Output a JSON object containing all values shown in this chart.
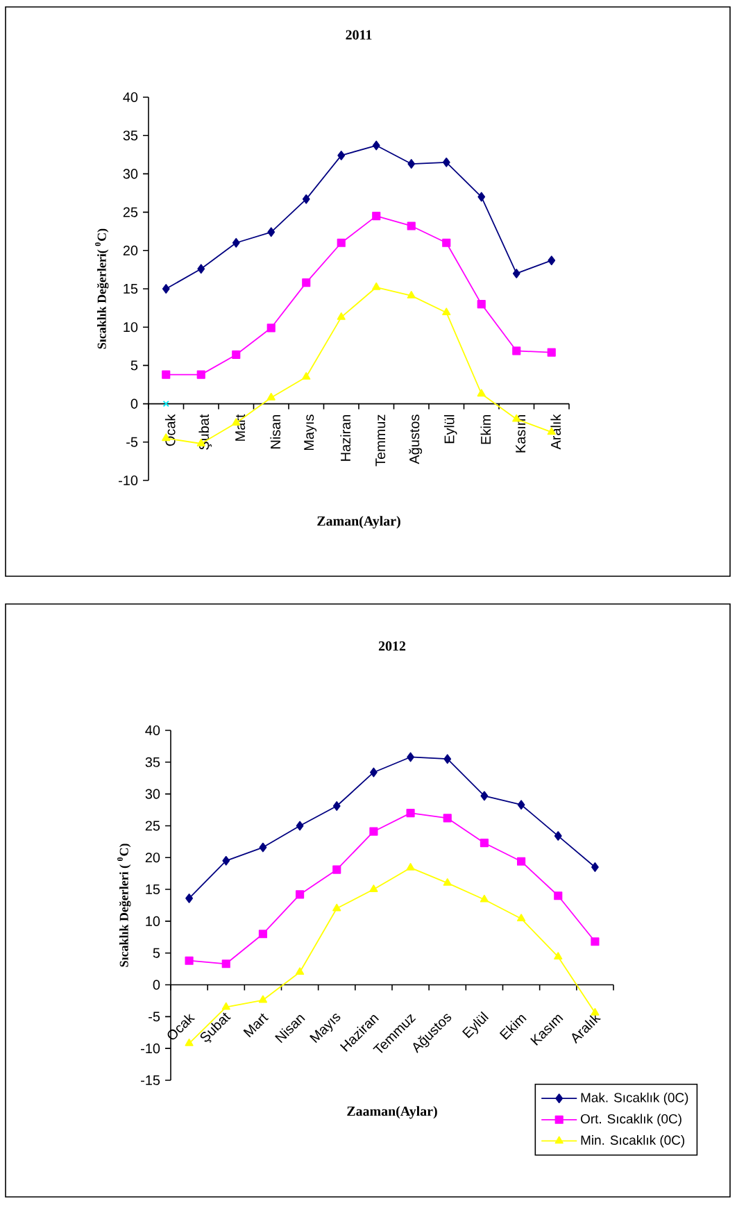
{
  "chart_data": [
    {
      "type": "line",
      "title": "2011",
      "xlabel": "Zaman(Aylar)",
      "ylabel": "Sıcaklık Değerleri(  $^{0}$C)",
      "categories": [
        "Ocak",
        "Şubat",
        "Mart",
        "Nisan",
        "Mayıs",
        "Haziran",
        "Temmuz",
        "Ağustos",
        "Eylül",
        "Ekim",
        "Kasım",
        "Aralık"
      ],
      "ylim": [
        -10,
        40
      ],
      "yticks": [
        -10,
        -5,
        0,
        5,
        10,
        15,
        20,
        25,
        30,
        35,
        40
      ],
      "grid": false,
      "legend": false,
      "series": [
        {
          "color": "#000080",
          "marker": "diamond",
          "values": [
            15,
            17.6,
            21,
            22.4,
            26.7,
            32.4,
            33.7,
            31.3,
            31.5,
            27,
            17,
            18.7
          ]
        },
        {
          "color": "#ff00ff",
          "marker": "square",
          "values": [
            3.8,
            3.8,
            6.4,
            9.9,
            15.8,
            21,
            24.5,
            23.2,
            21,
            13,
            6.9,
            6.7
          ]
        },
        {
          "color": "#ffff00",
          "marker": "triangle",
          "values": [
            -4.5,
            -5.2,
            -2.5,
            0.8,
            3.5,
            11.3,
            15.2,
            14.1,
            11.9,
            1.3,
            -2,
            -3.7
          ]
        },
        {
          "color": "#00e5ee",
          "marker": "cross",
          "values": [
            0,
            null,
            null,
            null,
            null,
            null,
            null,
            null,
            null,
            null,
            null,
            null
          ]
        }
      ]
    },
    {
      "type": "line",
      "title": "2012",
      "xlabel": "Zaaman(Aylar)",
      "ylabel": "Sıcaklık Değerleri (  $^{0}$C)",
      "categories": [
        "Ocak",
        "Şubat",
        "Mart",
        "Nisan",
        "Mayıs",
        "Haziran",
        "Temmuz",
        "Ağustos",
        "Eylül",
        "Ekim",
        "Kasım",
        "Aralık"
      ],
      "ylim": [
        -15,
        40
      ],
      "yticks": [
        -15,
        -10,
        -5,
        0,
        5,
        10,
        15,
        20,
        25,
        30,
        35,
        40
      ],
      "grid": false,
      "legend": "bottom right",
      "series": [
        {
          "name": "Mak. Sıcaklık (0C)",
          "color": "#000080",
          "marker": "diamond",
          "values": [
            13.6,
            19.5,
            21.6,
            25,
            28.1,
            33.4,
            35.8,
            35.5,
            29.7,
            28.3,
            23.4,
            18.5
          ]
        },
        {
          "name": "Ort. Sıcaklık (0C)",
          "color": "#ff00ff",
          "marker": "square",
          "values": [
            3.8,
            3.3,
            8,
            14.2,
            18.1,
            24.1,
            27,
            26.2,
            22.3,
            19.4,
            14,
            6.8
          ]
        },
        {
          "name": "Min. Sıcaklık (0C)",
          "color": "#ffff00",
          "marker": "triangle",
          "values": [
            -9.2,
            -3.5,
            -2.4,
            2,
            12,
            15,
            18.4,
            16,
            13.4,
            10.4,
            4.4,
            -4.4
          ]
        }
      ]
    }
  ]
}
